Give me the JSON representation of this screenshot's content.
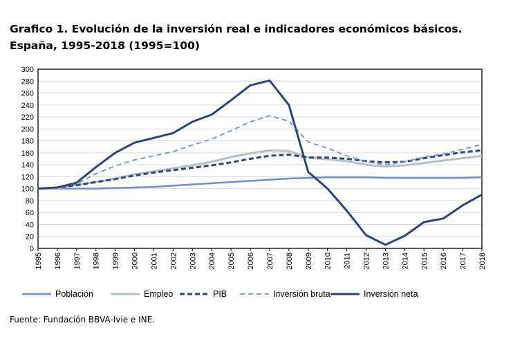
{
  "title_line1": "Grafico 1. Evolución de la  inversión real e indicadores económicos básicos.",
  "title_line2": "España, 1995-2018 (1995=100)",
  "source": "Fuente: Fundación BBVA-Ivie e INE.",
  "chart_data": {
    "type": "line",
    "title": "Grafico 1. Evolución de la  inversión real e indicadores económicos básicos. España, 1995-2018 (1995=100)",
    "xlabel": "",
    "ylabel": "",
    "x": [
      "1995",
      "1996",
      "1997",
      "1998",
      "1999",
      "2000",
      "2001",
      "2002",
      "2003",
      "2004",
      "2005",
      "2006",
      "2007",
      "2008",
      "2009",
      "2010",
      "2011",
      "2012",
      "2013",
      "2014",
      "2015",
      "2016",
      "2017",
      "2018"
    ],
    "ylim": [
      0,
      300
    ],
    "yticks": [
      0,
      20,
      40,
      60,
      80,
      100,
      120,
      140,
      160,
      180,
      200,
      220,
      240,
      260,
      280,
      300
    ],
    "grid": true,
    "legend": "bottom",
    "series": [
      {
        "name": "Población",
        "color": "#6e8dcf",
        "style": "solid",
        "values": [
          100,
          100,
          100,
          100,
          101,
          102,
          103,
          105,
          107,
          109,
          111,
          113,
          115,
          117,
          118,
          119,
          119,
          119,
          118,
          118,
          118,
          118,
          118,
          119
        ]
      },
      {
        "name": "Empleo",
        "color": "#b4bfc8",
        "style": "solid",
        "values": [
          100,
          101,
          106,
          111,
          117,
          124,
          129,
          134,
          139,
          145,
          153,
          159,
          164,
          163,
          152,
          149,
          146,
          140,
          137,
          139,
          143,
          147,
          151,
          155
        ]
      },
      {
        "name": "PIB",
        "color": "#2e4478",
        "style": "dashed-thick",
        "values": [
          100,
          102,
          106,
          111,
          116,
          122,
          127,
          131,
          135,
          139,
          144,
          150,
          155,
          157,
          152,
          152,
          150,
          146,
          144,
          145,
          151,
          156,
          161,
          164
        ]
      },
      {
        "name": "Inversión bruta",
        "color": "#6e8dcf",
        "style": "dashed",
        "values": [
          100,
          102,
          108,
          125,
          138,
          148,
          155,
          162,
          173,
          183,
          197,
          212,
          222,
          213,
          178,
          168,
          155,
          145,
          140,
          145,
          153,
          158,
          166,
          174
        ]
      },
      {
        "name": "Inversión neta",
        "color": "#2e4478",
        "style": "solid-thick",
        "values": [
          100,
          102,
          110,
          136,
          160,
          177,
          185,
          193,
          212,
          224,
          248,
          273,
          281,
          240,
          128,
          100,
          63,
          22,
          6,
          21,
          44,
          50,
          72,
          90
        ]
      }
    ]
  }
}
